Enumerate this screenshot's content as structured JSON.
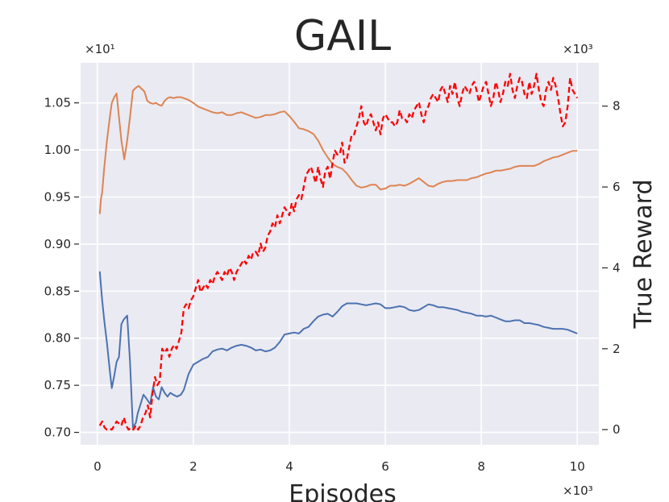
{
  "chart_data": {
    "type": "line",
    "title": "GAIL",
    "xlabel": "Episodes",
    "ylabel_left": "",
    "ylabel_right": "True Reward",
    "x_multiplier": "×10³",
    "y_left_multiplier": "×10¹",
    "y_right_multiplier": "×10³",
    "xlim": [
      -350,
      10450
    ],
    "ylim_left": [
      0.6868,
      1.0925
    ],
    "ylim_right": [
      -0.375,
      9.07
    ],
    "x_ticks": [
      0,
      2000,
      4000,
      6000,
      8000,
      10000
    ],
    "x_tick_labels": [
      "0",
      "2",
      "4",
      "6",
      "8",
      "10"
    ],
    "y_left_ticks": [
      0.7,
      0.75,
      0.8,
      0.85,
      0.9,
      0.95,
      1.0,
      1.05
    ],
    "y_left_tick_labels": [
      "0.70",
      "0.75",
      "0.80",
      "0.85",
      "0.90",
      "0.95",
      "1.00",
      "1.05"
    ],
    "y_right_ticks": [
      0,
      2000,
      4000,
      6000,
      8000
    ],
    "y_right_tick_labels": [
      "0",
      "2",
      "4",
      "6",
      "8"
    ],
    "grid": true,
    "colors": {
      "background": "#eaeaf2",
      "grid": "#ffffff",
      "blue": "#4c72b0",
      "orange": "#dd8452",
      "red": "#ff0000"
    },
    "series": [
      {
        "axis": "left",
        "color": "#4c72b0",
        "style": "solid",
        "x": [
          50,
          75,
          100,
          140,
          200,
          260,
          300,
          350,
          400,
          450,
          500,
          550,
          620,
          680,
          740,
          800,
          840,
          900,
          960,
          1020,
          1100,
          1160,
          1220,
          1280,
          1340,
          1400,
          1460,
          1520,
          1580,
          1660,
          1740,
          1800,
          1900,
          2000,
          2100,
          2200,
          2300,
          2400,
          2500,
          2600,
          2700,
          2800,
          2900,
          3000,
          3100,
          3200,
          3300,
          3400,
          3500,
          3600,
          3700,
          3800,
          3900,
          4000,
          4100,
          4200,
          4300,
          4400,
          4500,
          4600,
          4700,
          4800,
          4900,
          5000,
          5100,
          5200,
          5300,
          5400,
          5500,
          5600,
          5700,
          5800,
          5900,
          6000,
          6100,
          6200,
          6300,
          6400,
          6500,
          6600,
          6700,
          6800,
          6900,
          7000,
          7100,
          7200,
          7300,
          7400,
          7500,
          7600,
          7700,
          7800,
          7900,
          8000,
          8100,
          8200,
          8300,
          8400,
          8500,
          8600,
          8700,
          8800,
          8900,
          9000,
          9100,
          9200,
          9300,
          9400,
          9500,
          9600,
          9700,
          9800,
          9900,
          10000
        ],
        "y": [
          0.871,
          0.855,
          0.84,
          0.82,
          0.795,
          0.765,
          0.747,
          0.76,
          0.775,
          0.78,
          0.815,
          0.82,
          0.824,
          0.775,
          0.705,
          0.71,
          0.72,
          0.73,
          0.74,
          0.736,
          0.73,
          0.748,
          0.738,
          0.735,
          0.748,
          0.742,
          0.738,
          0.742,
          0.74,
          0.738,
          0.74,
          0.745,
          0.762,
          0.772,
          0.775,
          0.778,
          0.78,
          0.786,
          0.788,
          0.789,
          0.787,
          0.79,
          0.792,
          0.793,
          0.792,
          0.79,
          0.787,
          0.788,
          0.786,
          0.787,
          0.79,
          0.796,
          0.804,
          0.805,
          0.806,
          0.805,
          0.81,
          0.812,
          0.818,
          0.823,
          0.825,
          0.826,
          0.823,
          0.828,
          0.834,
          0.837,
          0.837,
          0.837,
          0.836,
          0.835,
          0.836,
          0.837,
          0.836,
          0.832,
          0.832,
          0.833,
          0.834,
          0.833,
          0.83,
          0.829,
          0.83,
          0.833,
          0.836,
          0.835,
          0.833,
          0.833,
          0.832,
          0.831,
          0.83,
          0.828,
          0.827,
          0.826,
          0.824,
          0.824,
          0.823,
          0.824,
          0.822,
          0.82,
          0.818,
          0.818,
          0.819,
          0.819,
          0.816,
          0.816,
          0.815,
          0.814,
          0.812,
          0.811,
          0.81,
          0.81,
          0.81,
          0.809,
          0.807,
          0.805
        ]
      },
      {
        "axis": "left",
        "color": "#dd8452",
        "style": "solid",
        "x": [
          50,
          75,
          100,
          140,
          200,
          260,
          300,
          350,
          400,
          450,
          500,
          560,
          620,
          680,
          740,
          800,
          860,
          920,
          980,
          1040,
          1100,
          1160,
          1220,
          1280,
          1340,
          1400,
          1460,
          1520,
          1580,
          1660,
          1740,
          1800,
          1900,
          2000,
          2100,
          2200,
          2300,
          2400,
          2500,
          2600,
          2700,
          2800,
          2900,
          3000,
          3100,
          3200,
          3300,
          3400,
          3500,
          3600,
          3700,
          3800,
          3900,
          4000,
          4100,
          4200,
          4300,
          4400,
          4500,
          4600,
          4700,
          4800,
          4900,
          5000,
          5100,
          5200,
          5300,
          5400,
          5500,
          5600,
          5700,
          5800,
          5900,
          6000,
          6100,
          6200,
          6300,
          6400,
          6500,
          6600,
          6700,
          6800,
          6900,
          7000,
          7100,
          7200,
          7300,
          7400,
          7500,
          7600,
          7700,
          7800,
          7900,
          8000,
          8100,
          8200,
          8300,
          8400,
          8500,
          8600,
          8700,
          8800,
          8900,
          9000,
          9100,
          9200,
          9300,
          9400,
          9500,
          9600,
          9700,
          9800,
          9900,
          10000
        ],
        "y": [
          0.932,
          0.948,
          0.955,
          0.98,
          1.01,
          1.035,
          1.05,
          1.056,
          1.06,
          1.035,
          1.01,
          0.99,
          1.01,
          1.035,
          1.063,
          1.066,
          1.068,
          1.065,
          1.062,
          1.052,
          1.05,
          1.049,
          1.05,
          1.048,
          1.047,
          1.052,
          1.055,
          1.056,
          1.055,
          1.056,
          1.056,
          1.055,
          1.053,
          1.05,
          1.046,
          1.044,
          1.042,
          1.04,
          1.039,
          1.04,
          1.037,
          1.037,
          1.039,
          1.04,
          1.038,
          1.036,
          1.034,
          1.035,
          1.037,
          1.037,
          1.038,
          1.04,
          1.041,
          1.036,
          1.03,
          1.023,
          1.022,
          1.02,
          1.017,
          1.01,
          1.0,
          0.992,
          0.985,
          0.982,
          0.98,
          0.975,
          0.968,
          0.962,
          0.96,
          0.961,
          0.963,
          0.963,
          0.958,
          0.959,
          0.962,
          0.962,
          0.963,
          0.962,
          0.964,
          0.967,
          0.97,
          0.966,
          0.962,
          0.961,
          0.964,
          0.966,
          0.967,
          0.967,
          0.968,
          0.968,
          0.968,
          0.97,
          0.971,
          0.973,
          0.975,
          0.976,
          0.978,
          0.978,
          0.979,
          0.98,
          0.982,
          0.983,
          0.983,
          0.983,
          0.983,
          0.985,
          0.988,
          0.99,
          0.992,
          0.993,
          0.995,
          0.997,
          0.999,
          0.999
        ]
      },
      {
        "axis": "right",
        "color": "#ff0000",
        "style": "dashed",
        "x": [
          50,
          100,
          150,
          200,
          250,
          300,
          350,
          400,
          450,
          500,
          550,
          600,
          650,
          700,
          750,
          800,
          850,
          900,
          950,
          1000,
          1050,
          1100,
          1150,
          1200,
          1250,
          1300,
          1350,
          1400,
          1450,
          1500,
          1550,
          1600,
          1650,
          1700,
          1750,
          1800,
          1850,
          1900,
          1950,
          2000,
          2050,
          2100,
          2150,
          2200,
          2250,
          2300,
          2350,
          2400,
          2450,
          2500,
          2550,
          2600,
          2650,
          2700,
          2750,
          2800,
          2850,
          2900,
          2950,
          3000,
          3050,
          3100,
          3150,
          3200,
          3250,
          3300,
          3350,
          3400,
          3450,
          3500,
          3550,
          3600,
          3650,
          3700,
          3750,
          3800,
          3850,
          3900,
          3950,
          4000,
          4050,
          4100,
          4150,
          4200,
          4250,
          4300,
          4350,
          4400,
          4450,
          4500,
          4550,
          4600,
          4650,
          4700,
          4750,
          4800,
          4850,
          4900,
          4950,
          5000,
          5050,
          5100,
          5150,
          5200,
          5250,
          5300,
          5350,
          5400,
          5450,
          5500,
          5550,
          5600,
          5650,
          5700,
          5750,
          5800,
          5850,
          5900,
          5950,
          6000,
          6050,
          6100,
          6150,
          6200,
          6250,
          6300,
          6350,
          6400,
          6450,
          6500,
          6550,
          6600,
          6650,
          6700,
          6750,
          6800,
          6850,
          6900,
          6950,
          7000,
          7050,
          7100,
          7150,
          7200,
          7250,
          7300,
          7350,
          7400,
          7450,
          7500,
          7550,
          7600,
          7650,
          7700,
          7750,
          7800,
          7850,
          7900,
          7950,
          8000,
          8050,
          8100,
          8150,
          8200,
          8250,
          8300,
          8350,
          8400,
          8450,
          8500,
          8550,
          8600,
          8650,
          8700,
          8750,
          8800,
          8850,
          8900,
          8950,
          9000,
          9050,
          9100,
          9150,
          9200,
          9250,
          9300,
          9350,
          9400,
          9450,
          9500,
          9550,
          9600,
          9650,
          9700,
          9750,
          9800,
          9850,
          9900,
          9950,
          10000
        ],
        "y": [
          0.1,
          0.2,
          0.05,
          0.0,
          0.02,
          0.0,
          0.1,
          0.2,
          0.15,
          0.1,
          0.3,
          0.1,
          0.0,
          0.05,
          0.0,
          0.1,
          0.0,
          0.1,
          0.3,
          0.4,
          0.6,
          0.3,
          0.9,
          1.3,
          1.1,
          1.2,
          2.0,
          1.9,
          2.0,
          1.8,
          2.0,
          2.1,
          2.0,
          2.2,
          2.4,
          3.0,
          3.1,
          3.0,
          3.2,
          3.3,
          3.5,
          3.7,
          3.4,
          3.5,
          3.6,
          3.5,
          3.7,
          3.6,
          3.8,
          3.9,
          3.8,
          3.7,
          3.9,
          3.8,
          4.0,
          3.9,
          3.7,
          3.9,
          4.0,
          4.1,
          4.2,
          4.1,
          4.3,
          4.2,
          4.4,
          4.4,
          4.3,
          4.6,
          4.4,
          4.5,
          4.8,
          4.9,
          5.1,
          5.0,
          5.3,
          5.1,
          5.3,
          5.5,
          5.4,
          5.3,
          5.6,
          5.4,
          5.7,
          5.8,
          5.7,
          6.0,
          6.3,
          6.4,
          6.5,
          6.3,
          6.1,
          6.5,
          6.2,
          6.0,
          6.4,
          6.5,
          6.2,
          6.6,
          6.9,
          6.8,
          6.8,
          7.1,
          6.6,
          6.7,
          7.0,
          7.3,
          7.3,
          7.5,
          7.7,
          8.0,
          7.6,
          7.5,
          7.7,
          7.8,
          7.6,
          7.4,
          7.6,
          7.3,
          7.7,
          7.8,
          7.7,
          7.6,
          7.6,
          7.5,
          7.6,
          7.9,
          7.7,
          7.7,
          7.6,
          7.8,
          7.7,
          7.9,
          8.0,
          8.1,
          7.8,
          7.6,
          7.9,
          8.0,
          8.2,
          8.3,
          8.2,
          8.1,
          8.4,
          8.5,
          8.3,
          8.1,
          8.5,
          8.3,
          8.6,
          8.2,
          8.0,
          8.3,
          8.5,
          8.4,
          8.3,
          8.5,
          8.6,
          8.4,
          8.1,
          8.3,
          8.5,
          8.6,
          8.3,
          8.0,
          8.2,
          8.6,
          8.4,
          8.1,
          8.3,
          8.6,
          8.5,
          8.8,
          8.4,
          8.2,
          8.5,
          8.7,
          8.6,
          8.3,
          8.2,
          8.6,
          8.3,
          8.5,
          8.8,
          8.4,
          8.1,
          8.0,
          8.4,
          8.6,
          8.4,
          8.7,
          8.5,
          8.2,
          7.8,
          7.5,
          7.6,
          8.0,
          8.7,
          8.4,
          8.3,
          8.2
        ]
      }
    ]
  }
}
